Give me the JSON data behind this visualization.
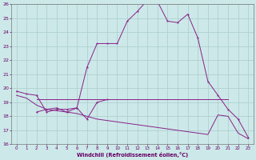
{
  "xlabel": "Windchill (Refroidissement éolien,°C)",
  "bg_color": "#cce8e8",
  "grid_color": "#aacccc",
  "line_color": "#882288",
  "xlim_min": -0.5,
  "xlim_max": 23.5,
  "ylim_min": 16,
  "ylim_max": 26,
  "xticks": [
    0,
    1,
    2,
    3,
    4,
    5,
    6,
    7,
    8,
    9,
    10,
    11,
    12,
    13,
    14,
    15,
    16,
    17,
    18,
    19,
    20,
    21,
    22,
    23
  ],
  "yticks": [
    16,
    17,
    18,
    19,
    20,
    21,
    22,
    23,
    24,
    25,
    26
  ],
  "main_x": [
    0,
    1,
    2,
    3,
    4,
    5,
    6,
    7,
    8,
    9,
    10,
    11,
    12,
    13,
    14,
    15,
    16,
    17,
    18,
    19,
    20,
    21,
    22,
    23
  ],
  "main_y": [
    19.8,
    19.6,
    19.5,
    18.3,
    18.5,
    18.5,
    18.6,
    21.5,
    23.2,
    23.2,
    23.2,
    24.8,
    25.5,
    26.3,
    26.2,
    24.8,
    24.7,
    25.3,
    23.6,
    20.5,
    19.5,
    18.5,
    17.8,
    16.5
  ],
  "flat_x": [
    2,
    3,
    4,
    5,
    6,
    7,
    8,
    9,
    10,
    11,
    12,
    13,
    14,
    15,
    16,
    17,
    18,
    19,
    20,
    21
  ],
  "flat_y": [
    19.2,
    19.2,
    19.2,
    19.2,
    19.2,
    19.2,
    19.2,
    19.2,
    19.2,
    19.2,
    19.2,
    19.2,
    19.2,
    19.2,
    19.2,
    19.2,
    19.2,
    19.2,
    19.2,
    19.2
  ],
  "wavy_x": [
    2,
    3,
    4,
    5,
    6,
    7,
    8,
    9
  ],
  "wavy_y": [
    18.3,
    18.5,
    18.6,
    18.3,
    18.6,
    17.8,
    19.0,
    19.2
  ],
  "decline_x": [
    0,
    1,
    2,
    3,
    4,
    5,
    6,
    7,
    8,
    9,
    10,
    11,
    12,
    13,
    14,
    15,
    16,
    17,
    18,
    19,
    20,
    21,
    22,
    23
  ],
  "decline_y": [
    19.5,
    19.3,
    18.8,
    18.5,
    18.4,
    18.3,
    18.2,
    18.0,
    17.8,
    17.7,
    17.6,
    17.5,
    17.4,
    17.3,
    17.2,
    17.1,
    17.0,
    16.9,
    16.8,
    16.7,
    18.1,
    18.0,
    16.8,
    16.4
  ]
}
